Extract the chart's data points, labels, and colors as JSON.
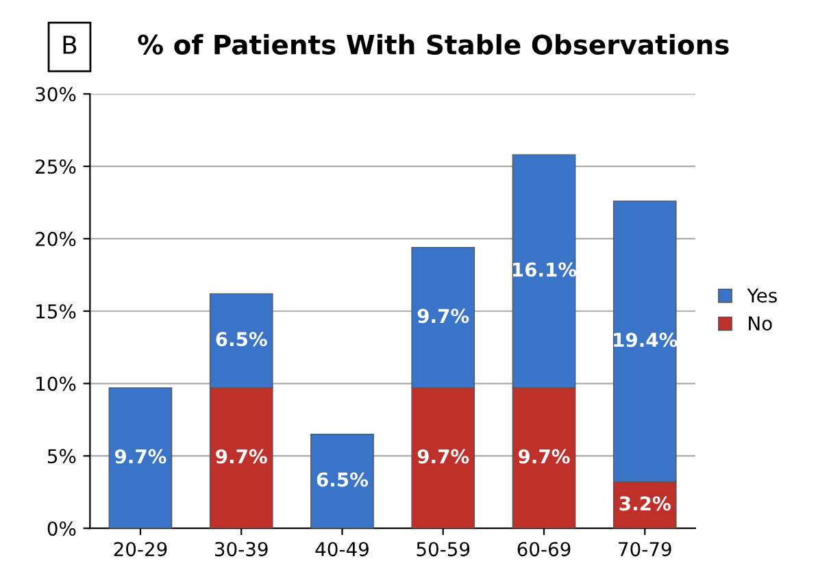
{
  "chart_data": {
    "type": "bar",
    "title": "% of Patients With Stable Observations",
    "annotations": [
      "B"
    ],
    "categories": [
      "20-29",
      "30-39",
      "40-49",
      "50-59",
      "60-69",
      "70-79"
    ],
    "stacked": true,
    "series": [
      {
        "name": "No",
        "color": "#c0302a",
        "values": [
          0,
          9.7,
          0,
          9.7,
          9.7,
          3.2
        ],
        "value_labels": [
          null,
          "9.7%",
          null,
          "9.7%",
          "9.7%",
          "3.2%"
        ]
      },
      {
        "name": "Yes",
        "color": "#3a74c8",
        "values": [
          9.7,
          6.5,
          6.5,
          9.7,
          16.1,
          19.4
        ],
        "value_labels": [
          "9.7%",
          "6.5%",
          "6.5%",
          "9.7%",
          "16.1%",
          "19.4%"
        ]
      }
    ],
    "ylim": [
      0,
      30
    ],
    "yticks": [
      {
        "value": 0,
        "label": "0%"
      },
      {
        "value": 5,
        "label": "5%"
      },
      {
        "value": 10,
        "label": "10%"
      },
      {
        "value": 15,
        "label": "15%"
      },
      {
        "value": 20,
        "label": "20%"
      },
      {
        "value": 25,
        "label": "25%"
      },
      {
        "value": 30,
        "label": "30%"
      }
    ],
    "grid": "y",
    "legend": "right"
  }
}
